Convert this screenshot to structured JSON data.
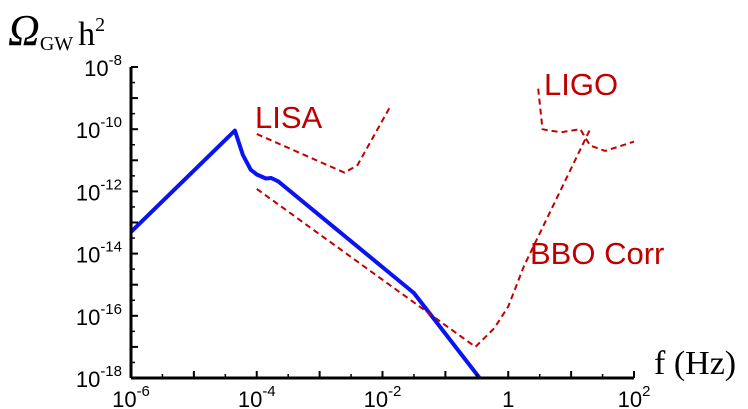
{
  "chart_data": {
    "type": "line",
    "scale": {
      "x": "log",
      "y": "log"
    },
    "xlim": [
      1e-06,
      100
    ],
    "ylim": [
      1e-18,
      1e-08
    ],
    "x_ticks": [
      {
        "base": "10",
        "exp": "-6"
      },
      {
        "base": "10",
        "exp": "-4"
      },
      {
        "base": "10",
        "exp": "-2"
      },
      {
        "base": "1",
        "exp": ""
      },
      {
        "base": "10",
        "exp": "2"
      }
    ],
    "y_ticks": [
      {
        "base": "10",
        "exp": "-18"
      },
      {
        "base": "10",
        "exp": "-16"
      },
      {
        "base": "10",
        "exp": "-14"
      },
      {
        "base": "10",
        "exp": "-12"
      },
      {
        "base": "10",
        "exp": "-10"
      },
      {
        "base": "10",
        "exp": "-8"
      }
    ],
    "xlabel": "f (Hz)",
    "ylabel": {
      "symbol": "Ω",
      "sub": "GW",
      "base": "h",
      "sup": "2"
    },
    "grid": false,
    "colors": {
      "signal": "#0a14f0",
      "sensitivity": "#c00000",
      "axes": "#000000"
    },
    "series": [
      {
        "kind": "signal",
        "points": [
          [
            1e-06,
            5e-14
          ],
          [
            4.5e-05,
            9e-11
          ],
          [
            6e-05,
            1.5e-11
          ],
          [
            8e-05,
            5e-12
          ],
          [
            0.0001,
            3.5e-12
          ],
          [
            0.00014,
            2.6e-12
          ],
          [
            0.00017,
            2.7e-12
          ],
          [
            0.00022,
            2.1e-12
          ],
          [
            0.0316,
            5.4e-16
          ],
          [
            0.35,
            1e-18
          ]
        ]
      },
      {
        "name": "LISA",
        "kind": "sensitivity",
        "points": [
          [
            0.0001,
            7e-11
          ],
          [
            0.0025,
            4e-12
          ],
          [
            0.004,
            7e-12
          ],
          [
            0.013,
            5e-10
          ]
        ]
      },
      {
        "name": "BBO Corr",
        "kind": "sensitivity",
        "points": [
          [
            0.0001,
            1.2e-12
          ],
          [
            0.3,
            1e-17
          ],
          [
            0.6,
            4e-17
          ],
          [
            1,
            2e-16
          ],
          [
            1.78,
            4e-15
          ],
          [
            20,
            1e-10
          ]
        ]
      },
      {
        "name": "LIGO",
        "kind": "sensitivity",
        "points": [
          [
            3,
            2e-09
          ],
          [
            3.5,
            1e-10
          ],
          [
            4.5,
            9e-11
          ],
          [
            7,
            8e-11
          ],
          [
            14,
            1e-10
          ],
          [
            20,
            3e-11
          ],
          [
            35,
            2e-11
          ],
          [
            100,
            4e-11
          ]
        ]
      }
    ]
  }
}
